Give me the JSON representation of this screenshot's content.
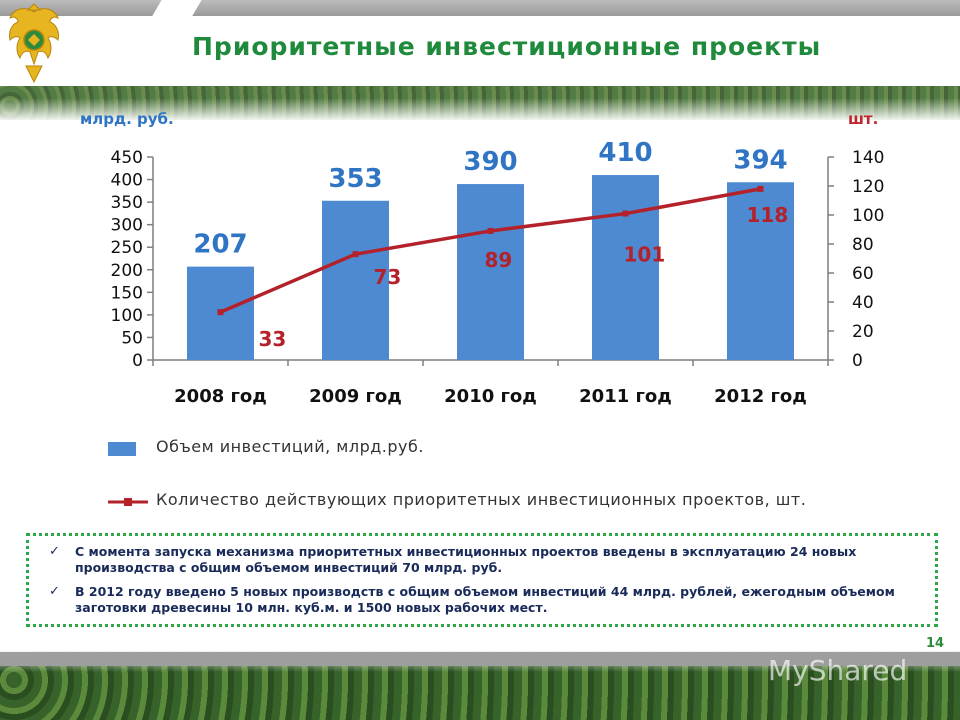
{
  "title": "Приоритетные инвестиционные проекты",
  "units": {
    "left": "млрд. руб.",
    "right": "шт."
  },
  "chart_data": {
    "type": "bar",
    "categories": [
      "2008 год",
      "2009 год",
      "2010 год",
      "2011 год",
      "2012 год"
    ],
    "series": [
      {
        "name": "Объем инвестиций, млрд.руб.",
        "type": "bar",
        "axis": "left",
        "values": [
          207,
          353,
          390,
          410,
          394
        ],
        "color": "#4e8ad2",
        "label_color": "#2f75c4"
      },
      {
        "name": "Количество действующих приоритетных инвестиционных проектов, шт.",
        "type": "line",
        "axis": "right",
        "values": [
          33,
          73,
          89,
          101,
          118
        ],
        "color": "#b3222a",
        "label_color": "#b3222a"
      }
    ],
    "y_left": {
      "min": 0,
      "max": 450,
      "ticks": [
        0,
        50,
        100,
        150,
        200,
        250,
        300,
        350,
        400,
        450
      ]
    },
    "y_right": {
      "min": 0,
      "max": 140,
      "ticks": [
        0,
        20,
        40,
        60,
        80,
        100,
        120,
        140
      ]
    },
    "legend_position": "bottom",
    "grid": false
  },
  "notes": [
    "С момента запуска механизма приоритетных инвестиционных проектов введены в эксплуатацию 24 новых производства с общим объемом инвестиций 70 млрд. руб.",
    "В 2012 году введено 5 новых производств с общим объемом инвестиций 44 млрд. рублей, ежегодным объемом заготовки древесины 10 млн. куб.м. и 1500 новых рабочих мест."
  ],
  "check_icon": "✓",
  "page_number": "14",
  "watermark": "MyShared",
  "icons": {
    "emblem": "double-headed-eagle-emblem"
  },
  "colors": {
    "title": "#1f8a3b",
    "bars": "#4e8ad2",
    "line": "#b3222a",
    "notes_border": "#2ea64a"
  }
}
